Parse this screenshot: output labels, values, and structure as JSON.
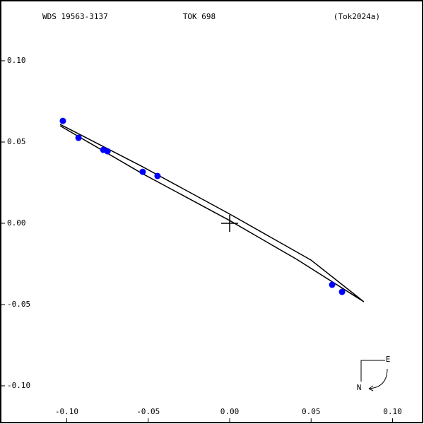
{
  "chart_data": {
    "type": "scatter",
    "header": {
      "left": "WDS 19563-3137",
      "center": "TOK 698",
      "right": "(Tok2024a)"
    },
    "compass": {
      "east": "E",
      "north": "N"
    },
    "xlim": [
      -0.141,
      0.1193
    ],
    "ylim": [
      -0.1235,
      0.1374
    ],
    "xticks": [
      {
        "value": -0.1,
        "label": "-0.10"
      },
      -0.05,
      {
        "value": 0,
        "label": "0.00"
      },
      0.05,
      {
        "value": 0.1,
        "label": "0.10"
      }
    ],
    "yticks": [
      {
        "value": 0.1,
        "label": "0.10"
      },
      0.05,
      {
        "value": 0,
        "label": "0.00"
      },
      -0.05,
      {
        "value": -0.1,
        "label": "-0.10"
      }
    ],
    "series": [
      {
        "color": "#0000ff",
        "x": [
          -0.1024,
          -0.0928,
          -0.0776,
          -0.075,
          -0.0534,
          -0.0443,
          0.0629,
          0.069
        ],
        "values": [
          0.063,
          0.0526,
          0.0452,
          0.0443,
          0.0317,
          0.0291,
          -0.0378,
          -0.0422
        ]
      }
    ],
    "orbit": {
      "color": "#000000",
      "x": [
        -0.1041,
        -0.0542,
        0,
        0.0499,
        0.0824,
        0.0412,
        0,
        -0.0542,
        -0.1041
      ],
      "values": [
        0.0609,
        0.0352,
        0.0057,
        -0.0226,
        -0.0483,
        -0.0222,
        0.0017,
        0.0309,
        0.06
      ]
    }
  }
}
